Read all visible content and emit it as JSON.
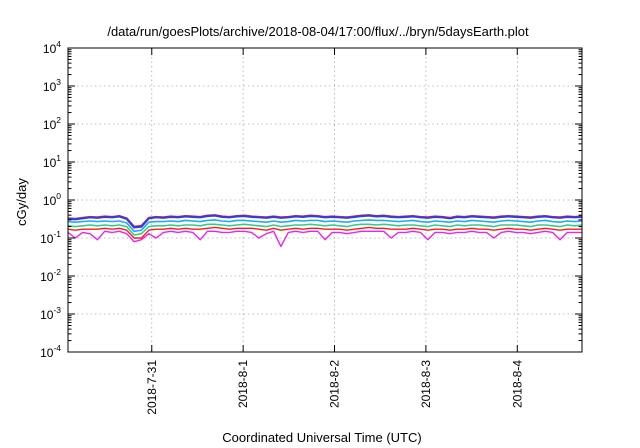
{
  "chart_data": {
    "type": "line",
    "title": "/data/run/goesPlots/archive/2018-08-04/17:00/flux/../bryn/5daysEarth.plot",
    "xlabel": "Coordinated Universal Time (UTC)",
    "ylabel": "cGy/day",
    "yscale": "log",
    "ylim": [
      0.0001,
      10000
    ],
    "xlim": [
      "2018-07-30 02:00",
      "2018-08-04 17:00"
    ],
    "y_ticks": [
      {
        "base": "10",
        "exp": "-4"
      },
      {
        "base": "10",
        "exp": "-3"
      },
      {
        "base": "10",
        "exp": "-2"
      },
      {
        "base": "10",
        "exp": "-1"
      },
      {
        "base": "10",
        "exp": "0"
      },
      {
        "base": "10",
        "exp": "1"
      },
      {
        "base": "10",
        "exp": "2"
      },
      {
        "base": "10",
        "exp": "3"
      },
      {
        "base": "10",
        "exp": "4"
      }
    ],
    "x_ticks": [
      "2018-7-31",
      "2018-8-1",
      "2018-8-2",
      "2018-8-3",
      "2018-8-4"
    ],
    "grid": true,
    "legend": "none",
    "series": [
      {
        "color": "#ff2a2a",
        "width": 2.0,
        "values": [
          0.33,
          0.32,
          0.34,
          0.36,
          0.35,
          0.37,
          0.36,
          0.38,
          0.33,
          0.2,
          0.21,
          0.34,
          0.36,
          0.35,
          0.37,
          0.36,
          0.38,
          0.37,
          0.36,
          0.39,
          0.4,
          0.37,
          0.36,
          0.38,
          0.39,
          0.37,
          0.36,
          0.35,
          0.37,
          0.35,
          0.36,
          0.38,
          0.37,
          0.39,
          0.38,
          0.36,
          0.37,
          0.36,
          0.35,
          0.37,
          0.39,
          0.4,
          0.38,
          0.39,
          0.37,
          0.36,
          0.37,
          0.38,
          0.36,
          0.35,
          0.37,
          0.36,
          0.34,
          0.37,
          0.36,
          0.38,
          0.37,
          0.36,
          0.35,
          0.37,
          0.38,
          0.37,
          0.36,
          0.35,
          0.37,
          0.38,
          0.36,
          0.35,
          0.37,
          0.36,
          0.37
        ]
      },
      {
        "color": "#3a3ad8",
        "width": 2.2,
        "values": [
          0.32,
          0.31,
          0.33,
          0.35,
          0.34,
          0.36,
          0.35,
          0.37,
          0.32,
          0.19,
          0.2,
          0.33,
          0.35,
          0.34,
          0.36,
          0.35,
          0.37,
          0.36,
          0.35,
          0.38,
          0.39,
          0.36,
          0.35,
          0.37,
          0.38,
          0.36,
          0.35,
          0.34,
          0.36,
          0.34,
          0.35,
          0.37,
          0.36,
          0.38,
          0.37,
          0.35,
          0.36,
          0.35,
          0.34,
          0.36,
          0.38,
          0.39,
          0.37,
          0.38,
          0.36,
          0.35,
          0.36,
          0.37,
          0.35,
          0.34,
          0.36,
          0.35,
          0.33,
          0.36,
          0.35,
          0.37,
          0.36,
          0.35,
          0.34,
          0.36,
          0.37,
          0.36,
          0.35,
          0.34,
          0.36,
          0.37,
          0.35,
          0.34,
          0.36,
          0.35,
          0.36
        ]
      },
      {
        "color": "#22aaee",
        "width": 1.6,
        "values": [
          0.27,
          0.26,
          0.27,
          0.28,
          0.27,
          0.28,
          0.27,
          0.28,
          0.25,
          0.15,
          0.16,
          0.26,
          0.27,
          0.27,
          0.28,
          0.27,
          0.29,
          0.28,
          0.27,
          0.29,
          0.3,
          0.28,
          0.27,
          0.29,
          0.29,
          0.28,
          0.27,
          0.26,
          0.28,
          0.26,
          0.27,
          0.29,
          0.28,
          0.29,
          0.29,
          0.27,
          0.28,
          0.27,
          0.26,
          0.28,
          0.29,
          0.3,
          0.29,
          0.29,
          0.28,
          0.27,
          0.28,
          0.29,
          0.27,
          0.26,
          0.28,
          0.27,
          0.26,
          0.28,
          0.27,
          0.29,
          0.28,
          0.27,
          0.26,
          0.28,
          0.29,
          0.28,
          0.27,
          0.26,
          0.28,
          0.29,
          0.27,
          0.26,
          0.28,
          0.27,
          0.28
        ]
      },
      {
        "color": "#33cc88",
        "width": 1.6,
        "values": [
          0.21,
          0.2,
          0.21,
          0.22,
          0.21,
          0.22,
          0.21,
          0.22,
          0.2,
          0.12,
          0.13,
          0.2,
          0.21,
          0.21,
          0.22,
          0.21,
          0.22,
          0.22,
          0.21,
          0.23,
          0.23,
          0.22,
          0.21,
          0.22,
          0.23,
          0.22,
          0.21,
          0.2,
          0.22,
          0.2,
          0.21,
          0.22,
          0.22,
          0.23,
          0.22,
          0.21,
          0.22,
          0.21,
          0.2,
          0.22,
          0.23,
          0.23,
          0.22,
          0.23,
          0.22,
          0.21,
          0.22,
          0.22,
          0.21,
          0.2,
          0.22,
          0.21,
          0.2,
          0.22,
          0.21,
          0.22,
          0.22,
          0.21,
          0.2,
          0.22,
          0.22,
          0.22,
          0.21,
          0.2,
          0.22,
          0.22,
          0.21,
          0.2,
          0.22,
          0.21,
          0.22
        ]
      },
      {
        "color": "#ff1a1a",
        "width": 1.4,
        "values": [
          0.17,
          0.16,
          0.17,
          0.17,
          0.17,
          0.18,
          0.17,
          0.18,
          0.16,
          0.1,
          0.1,
          0.16,
          0.17,
          0.17,
          0.18,
          0.17,
          0.18,
          0.17,
          0.17,
          0.18,
          0.19,
          0.18,
          0.17,
          0.18,
          0.18,
          0.18,
          0.17,
          0.16,
          0.18,
          0.16,
          0.17,
          0.18,
          0.17,
          0.18,
          0.18,
          0.17,
          0.17,
          0.17,
          0.16,
          0.17,
          0.18,
          0.19,
          0.18,
          0.18,
          0.17,
          0.17,
          0.17,
          0.18,
          0.17,
          0.16,
          0.17,
          0.17,
          0.16,
          0.17,
          0.17,
          0.18,
          0.17,
          0.17,
          0.16,
          0.17,
          0.18,
          0.17,
          0.17,
          0.16,
          0.17,
          0.18,
          0.17,
          0.16,
          0.17,
          0.17,
          0.17
        ]
      },
      {
        "color": "#ee22ee",
        "width": 1.4,
        "values": [
          0.14,
          0.1,
          0.14,
          0.13,
          0.09,
          0.15,
          0.14,
          0.15,
          0.13,
          0.08,
          0.09,
          0.13,
          0.1,
          0.14,
          0.15,
          0.14,
          0.15,
          0.14,
          0.09,
          0.15,
          0.15,
          0.14,
          0.14,
          0.15,
          0.15,
          0.14,
          0.1,
          0.13,
          0.15,
          0.06,
          0.14,
          0.15,
          0.14,
          0.15,
          0.15,
          0.09,
          0.14,
          0.14,
          0.13,
          0.14,
          0.15,
          0.15,
          0.15,
          0.15,
          0.1,
          0.14,
          0.14,
          0.15,
          0.14,
          0.09,
          0.14,
          0.14,
          0.13,
          0.14,
          0.14,
          0.15,
          0.14,
          0.14,
          0.1,
          0.14,
          0.15,
          0.14,
          0.14,
          0.13,
          0.14,
          0.15,
          0.14,
          0.09,
          0.14,
          0.14,
          0.14
        ]
      }
    ]
  }
}
